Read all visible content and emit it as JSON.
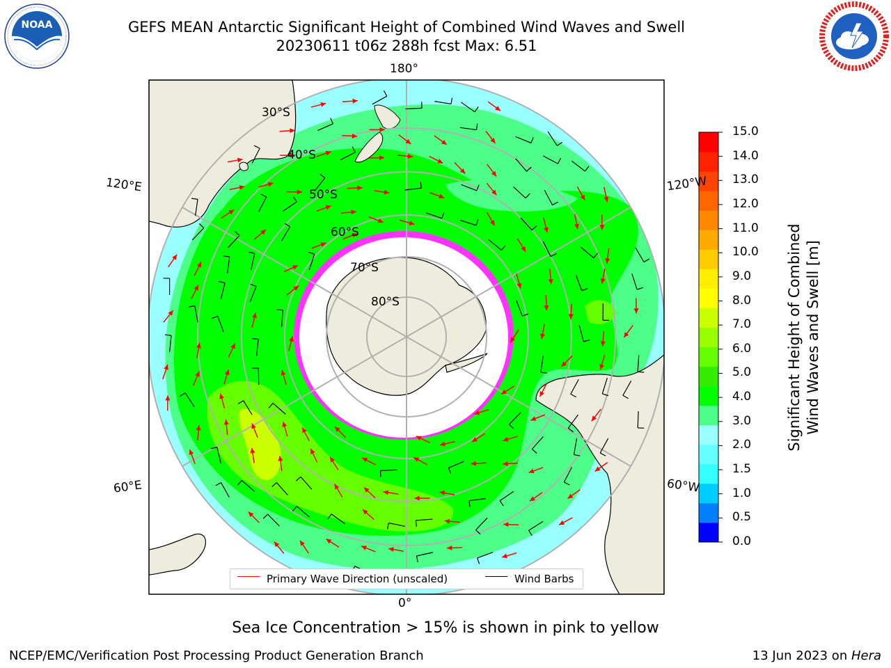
{
  "title": {
    "line1": "GEFS MEAN Antarctic Significant Height of Combined Wind Waves and Swell",
    "line2": "20230611 t06z 288h fcst   Max: 6.51"
  },
  "logos": {
    "left": {
      "name": "noaa-logo",
      "text": "NOAA"
    },
    "right": {
      "name": "nws-logo"
    }
  },
  "map": {
    "projection": "south-polar-stereographic",
    "longitude_labels": {
      "top": "180°",
      "bottom": "0°",
      "upper_left": "120°E",
      "upper_right": "120°W",
      "lower_left": "60°E",
      "lower_right": "60°W"
    },
    "latitude_labels": [
      "30°S",
      "40°S",
      "50°S",
      "60°S",
      "70°S",
      "80°S"
    ],
    "colors": {
      "ocean_low": "#99ffff",
      "ocean_mid": "#4dff88",
      "ocean_high": "#00ff00",
      "ocean_higher": "#66ff00",
      "ocean_peak": "#ccff00",
      "land": "#eeecdc",
      "ice": "#ff00ff",
      "wave_arrow": "#ff0000",
      "wind_barb": "#000000",
      "grid": "#b0b0b0"
    }
  },
  "colorbar": {
    "label_line1": "Significant Height of Combined",
    "label_line2": "Wind Waves and Swell [m]",
    "ticks": [
      "15.0",
      "14.0",
      "13.0",
      "12.0",
      "11.0",
      "10.0",
      "9.0",
      "8.0",
      "7.0",
      "6.0",
      "5.0",
      "4.0",
      "3.0",
      "2.0",
      "1.5",
      "1.0",
      "0.5",
      "0.0"
    ],
    "colors": [
      "#0000ff",
      "#0080ff",
      "#00ccff",
      "#33ffff",
      "#66ffff",
      "#99ffff",
      "#4dff88",
      "#00ff00",
      "#33ee00",
      "#66ff00",
      "#99ff00",
      "#ccff00",
      "#ffff00",
      "#ffee00",
      "#ffcc00",
      "#ffaa00",
      "#ff8800",
      "#ff6600",
      "#ff4400",
      "#ff2200",
      "#ff0000"
    ]
  },
  "legend": {
    "wave": {
      "label": "Primary Wave Direction (unscaled)",
      "color": "#ff0000"
    },
    "wind": {
      "label": "Wind Barbs",
      "color": "#000000"
    }
  },
  "caption": "Sea Ice Concentration > 15% is shown in pink to yellow",
  "footer": {
    "left": "NCEP/EMC/Verification Post Processing Product Generation Branch",
    "right_date": "13 Jun 2023 on ",
    "right_host": "Hera"
  }
}
